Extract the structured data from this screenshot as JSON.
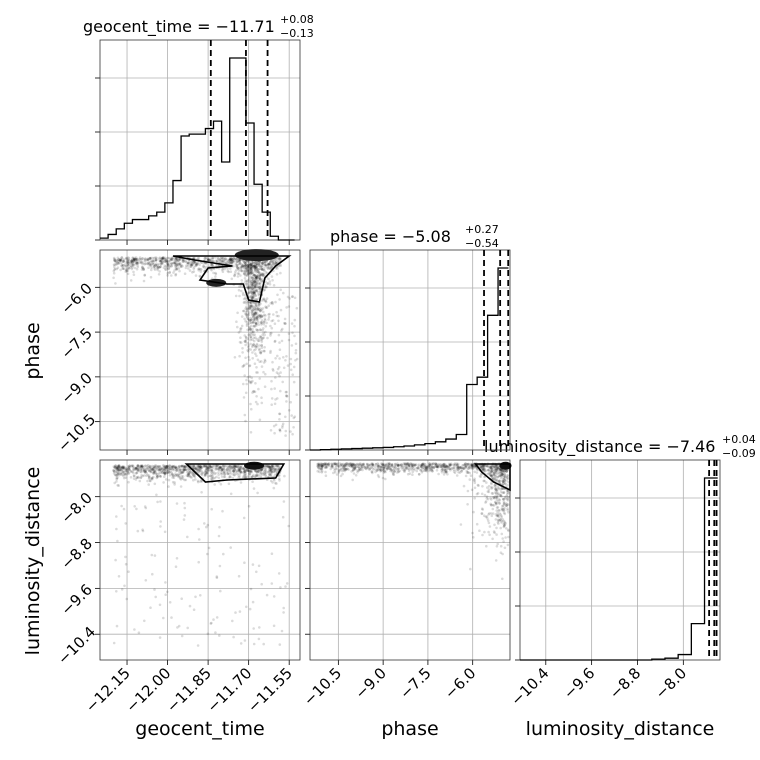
{
  "chart_data": {
    "type": "corner",
    "parameters": [
      "geocent_time",
      "phase",
      "luminosity_distance"
    ],
    "titles": [
      {
        "param": "geocent_time",
        "median": "−11.71",
        "plus": "+0.08",
        "minus": "−0.13"
      },
      {
        "param": "phase",
        "median": "−5.08",
        "plus": "+0.27",
        "minus": "−0.54"
      },
      {
        "param": "luminosity_distance",
        "median": "−7.46",
        "plus": "+0.04",
        "minus": "−0.09"
      }
    ],
    "axes": {
      "geocent_time": {
        "range": [
          -12.25,
          -11.51
        ],
        "ticks": [
          -12.15,
          -12.0,
          -11.85,
          -11.7,
          -11.55
        ],
        "ticklabels": [
          "−12.15",
          "−12.00",
          "−11.85",
          "−11.70",
          "−11.55"
        ]
      },
      "phase": {
        "range": [
          -11.45,
          -4.75
        ],
        "ticks": [
          -10.5,
          -9.0,
          -7.5,
          -6.0
        ],
        "ticklabels": [
          "−10.5",
          "−9.0",
          "−7.5",
          "−6.0"
        ]
      },
      "luminosity_distance": {
        "range": [
          -10.85,
          -7.36
        ],
        "ticks": [
          -10.4,
          -9.6,
          -8.8,
          -8.0
        ],
        "ticklabels": [
          "−10.4",
          "−9.6",
          "−8.8",
          "−8.0"
        ]
      }
    },
    "histograms": {
      "geocent_time": {
        "bin_edges": [
          -12.25,
          -12.22,
          -12.19,
          -12.16,
          -12.13,
          -12.1,
          -12.07,
          -12.04,
          -12.01,
          -11.98,
          -11.95,
          -11.92,
          -11.89,
          -11.86,
          -11.83,
          -11.8,
          -11.77,
          -11.74,
          -11.71,
          -11.68,
          -11.65,
          -11.62,
          -11.59,
          -11.56,
          -11.53
        ],
        "counts": [
          0.01,
          0.03,
          0.06,
          0.09,
          0.11,
          0.11,
          0.13,
          0.15,
          0.2,
          0.32,
          0.56,
          0.57,
          0.57,
          0.6,
          0.64,
          0.42,
          0.98,
          0.98,
          0.63,
          0.3,
          0.15,
          0.02,
          0.0,
          0.0
        ],
        "quantiles": [
          -11.84,
          -11.71,
          -11.63
        ]
      },
      "phase": {
        "bin_edges": [
          -11.45,
          -11.1,
          -10.75,
          -10.4,
          -10.05,
          -9.7,
          -9.35,
          -9.0,
          -8.65,
          -8.3,
          -7.95,
          -7.6,
          -7.25,
          -6.9,
          -6.55,
          -6.2,
          -5.85,
          -5.5,
          -5.15,
          -4.8
        ],
        "counts": [
          0.0,
          0.002,
          0.004,
          0.006,
          0.008,
          0.01,
          0.012,
          0.014,
          0.018,
          0.022,
          0.028,
          0.035,
          0.045,
          0.06,
          0.085,
          0.36,
          0.4,
          0.74,
          1.0
        ],
        "quantiles": [
          -5.62,
          -5.08,
          -4.81
        ]
      },
      "luminosity_distance": {
        "bin_edges": [
          -10.85,
          -10.62,
          -10.39,
          -10.16,
          -9.93,
          -9.7,
          -9.47,
          -9.24,
          -9.01,
          -8.78,
          -8.55,
          -8.32,
          -8.09,
          -7.86,
          -7.63,
          -7.4
        ],
        "counts": [
          0.0,
          0.0,
          0.0,
          0.0,
          0.0,
          0.0,
          0.0,
          0.0,
          0.0,
          0.0,
          0.005,
          0.01,
          0.03,
          0.2,
          1.0
        ],
        "quantiles": [
          -7.55,
          -7.46,
          -7.42
        ]
      }
    }
  }
}
